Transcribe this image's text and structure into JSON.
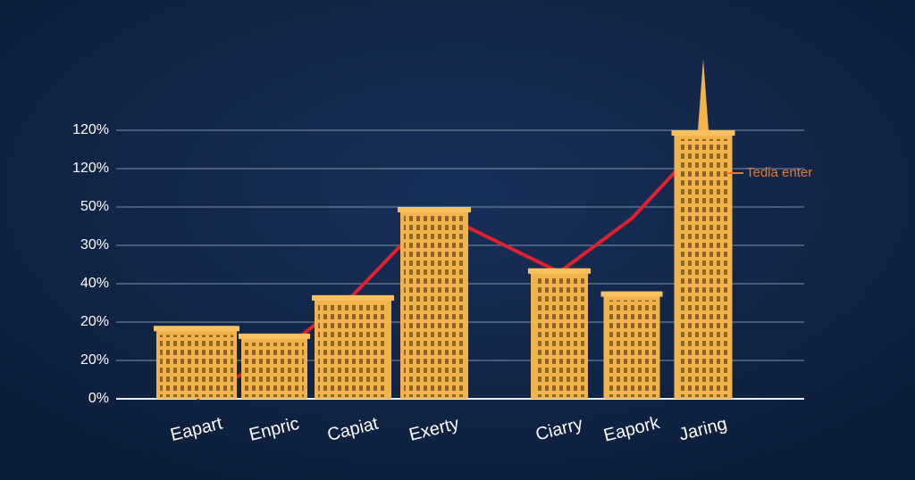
{
  "chart_data": {
    "type": "bar",
    "categories": [
      "Eapart",
      "Enpric",
      "Capiat",
      "Exerty",
      "Ciarry",
      "Eapork",
      "Jaring"
    ],
    "values": [
      1.9,
      1.7,
      2.7,
      5.0,
      3.4,
      2.8,
      7.0
    ],
    "color": "#f2b24c",
    "line_values": [
      0,
      1.1,
      2.7,
      4.9,
      3.3,
      4.7,
      6.7
    ],
    "line_color": "#e0202a",
    "ylim": [
      0,
      7
    ],
    "yticks": [
      {
        "value": 0,
        "label": "0%"
      },
      {
        "value": 1,
        "label": "20%"
      },
      {
        "value": 2,
        "label": "20%"
      },
      {
        "value": 3,
        "label": "40%"
      },
      {
        "value": 4,
        "label": "30%"
      },
      {
        "value": 5,
        "label": "50%"
      },
      {
        "value": 6,
        "label": "120%"
      },
      {
        "value": 7,
        "label": "120%"
      }
    ],
    "grid": true,
    "annotation": "Tedia enter"
  }
}
